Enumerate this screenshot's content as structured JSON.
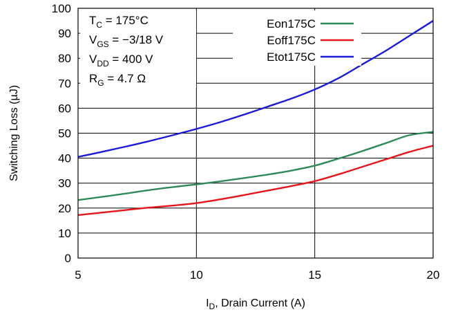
{
  "chart_data": {
    "type": "line",
    "xlabel": {
      "prefix": "I",
      "sub": "D",
      "suffix": ", Drain Current (A)"
    },
    "ylabel": "Switching Loss (µJ)",
    "xlim": [
      5,
      20
    ],
    "ylim": [
      0,
      100
    ],
    "xticks": [
      5,
      10,
      15,
      20
    ],
    "yticks": [
      0,
      10,
      20,
      30,
      40,
      50,
      60,
      70,
      80,
      90,
      100
    ],
    "grid": true,
    "legend_position": "top-right",
    "conditions": [
      {
        "main": "T",
        "sub": "C",
        "rest": " = 175°C"
      },
      {
        "main": "V",
        "sub": "GS",
        "rest": " = −3/18 V"
      },
      {
        "main": "V",
        "sub": "DD",
        "rest": " = 400 V"
      },
      {
        "main": "R",
        "sub": "G",
        "rest": " = 4.7 Ω"
      }
    ],
    "series": [
      {
        "name": "Eon175C",
        "color": "#2e8b57",
        "x": [
          5,
          6,
          7,
          8,
          9,
          10,
          11,
          12,
          13,
          14,
          15,
          16,
          17,
          18,
          19,
          20
        ],
        "y": [
          23.2,
          24.5,
          25.8,
          27.2,
          28.4,
          29.5,
          30.7,
          32.0,
          33.4,
          35.0,
          37.0,
          39.8,
          42.8,
          46.0,
          49.2,
          50.5
        ]
      },
      {
        "name": "Eoff175C",
        "color": "#e8141b",
        "x": [
          5,
          6,
          7,
          8,
          9,
          10,
          11,
          12,
          13,
          14,
          15,
          16,
          17,
          18,
          19,
          20
        ],
        "y": [
          17.2,
          18.2,
          19.2,
          20.2,
          21.0,
          22.0,
          23.5,
          25.2,
          27.0,
          28.8,
          30.8,
          33.5,
          36.5,
          39.5,
          42.5,
          45.0
        ]
      },
      {
        "name": "Etot175C",
        "color": "#1a1adc",
        "x": [
          5,
          6,
          7,
          8,
          9,
          10,
          11,
          12,
          13,
          14,
          15,
          16,
          17,
          18,
          19,
          20
        ],
        "y": [
          40.5,
          42.5,
          44.6,
          46.8,
          49.2,
          51.7,
          54.4,
          57.4,
          60.6,
          63.8,
          67.5,
          72.0,
          77.5,
          83.0,
          89.0,
          95.0
        ]
      }
    ]
  }
}
